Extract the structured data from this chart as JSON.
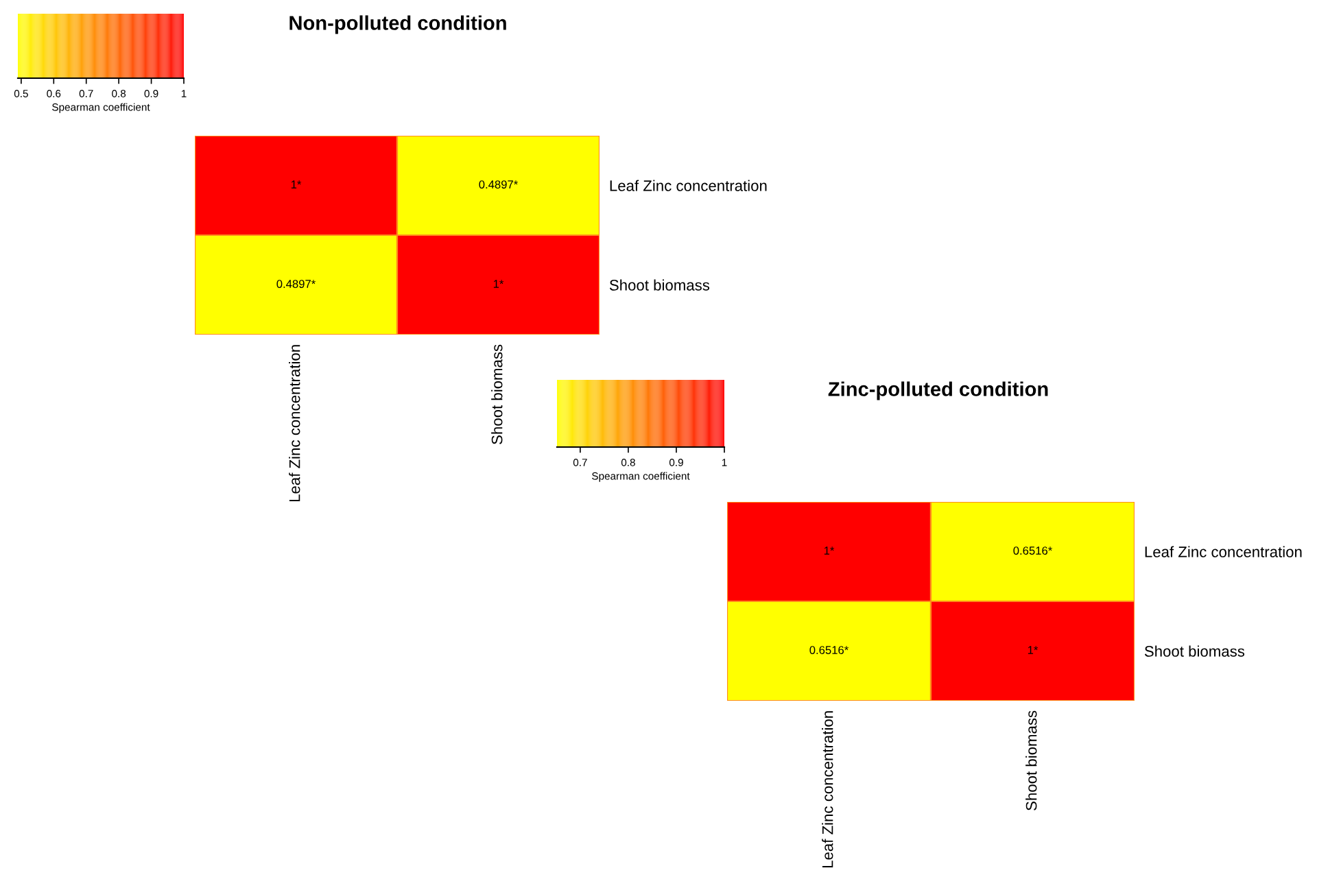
{
  "chart_data": [
    {
      "type": "heatmap",
      "title": "Non-polluted condition",
      "categories": [
        "Leaf Zinc concentration",
        "Shoot biomass"
      ],
      "y_categories": [
        "Leaf Zinc concentration",
        "Shoot biomass"
      ],
      "cells": [
        [
          1,
          0.4897
        ],
        [
          0.4897,
          1
        ]
      ],
      "cell_labels": [
        [
          "1*",
          "0.4897*"
        ],
        [
          "0.4897*",
          "1*"
        ]
      ],
      "clim": [
        0.4897,
        1
      ],
      "cticks": [
        0.5,
        0.6,
        0.7,
        0.8,
        0.9,
        1
      ],
      "clabel": "Spearman coefficient"
    },
    {
      "type": "heatmap",
      "title": "Zinc-polluted condition",
      "categories": [
        "Leaf Zinc concentration",
        "Shoot biomass"
      ],
      "y_categories": [
        "Leaf Zinc concentration",
        "Shoot biomass"
      ],
      "cells": [
        [
          1,
          0.6516
        ],
        [
          0.6516,
          1
        ]
      ],
      "cell_labels": [
        [
          "1*",
          "0.6516*"
        ],
        [
          "0.6516*",
          "1*"
        ]
      ],
      "clim": [
        0.6516,
        1
      ],
      "cticks": [
        0.7,
        0.8,
        0.9,
        1
      ],
      "clabel": "Spearman coefficient"
    }
  ]
}
